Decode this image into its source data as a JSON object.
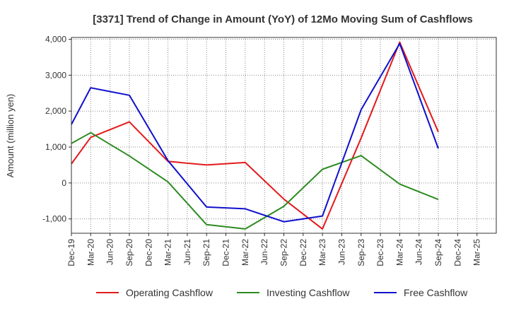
{
  "chart_data": {
    "type": "line",
    "title": "[3371]  Trend of Change in Amount (YoY) of 12Mo Moving Sum of Cashflows",
    "xlabel": "",
    "ylabel": "Amount (million yen)",
    "ylim": [
      -1400,
      4050
    ],
    "yticks": [
      -1000,
      0,
      1000,
      2000,
      3000,
      4000
    ],
    "ytick_labels": [
      "-1,000",
      "0",
      "1,000",
      "2,000",
      "3,000",
      "4,000"
    ],
    "grid": true,
    "legend_position": "bottom",
    "categories": [
      "Dec-19",
      "Mar-20",
      "Jun-20",
      "Sep-20",
      "Dec-20",
      "Mar-21",
      "Jun-21",
      "Sep-21",
      "Dec-21",
      "Mar-22",
      "Jun-22",
      "Sep-22",
      "Dec-22",
      "Mar-23",
      "Jun-23",
      "Sep-23",
      "Dec-23",
      "Mar-24",
      "Jun-24",
      "Sep-24",
      "Dec-24",
      "Mar-25"
    ],
    "series": [
      {
        "name": "Operating Cashflow",
        "color": "#e31a1c",
        "values": [
          530,
          1270,
          null,
          1700,
          null,
          600,
          null,
          500,
          null,
          570,
          null,
          -450,
          null,
          -1280,
          null,
          1250,
          null,
          3920,
          null,
          1420,
          null,
          null
        ]
      },
      {
        "name": "Investing Cashflow",
        "color": "#2e8b22",
        "values": [
          1100,
          1400,
          null,
          750,
          null,
          30,
          null,
          -1160,
          null,
          -1280,
          null,
          -650,
          null,
          380,
          null,
          760,
          null,
          -30,
          null,
          -460,
          null,
          null
        ]
      },
      {
        "name": "Free Cashflow",
        "color": "#1010cc",
        "values": [
          1630,
          2650,
          null,
          2440,
          null,
          620,
          null,
          -670,
          null,
          -720,
          null,
          -1080,
          null,
          -920,
          null,
          2040,
          null,
          3880,
          null,
          960,
          null,
          null
        ]
      }
    ]
  }
}
